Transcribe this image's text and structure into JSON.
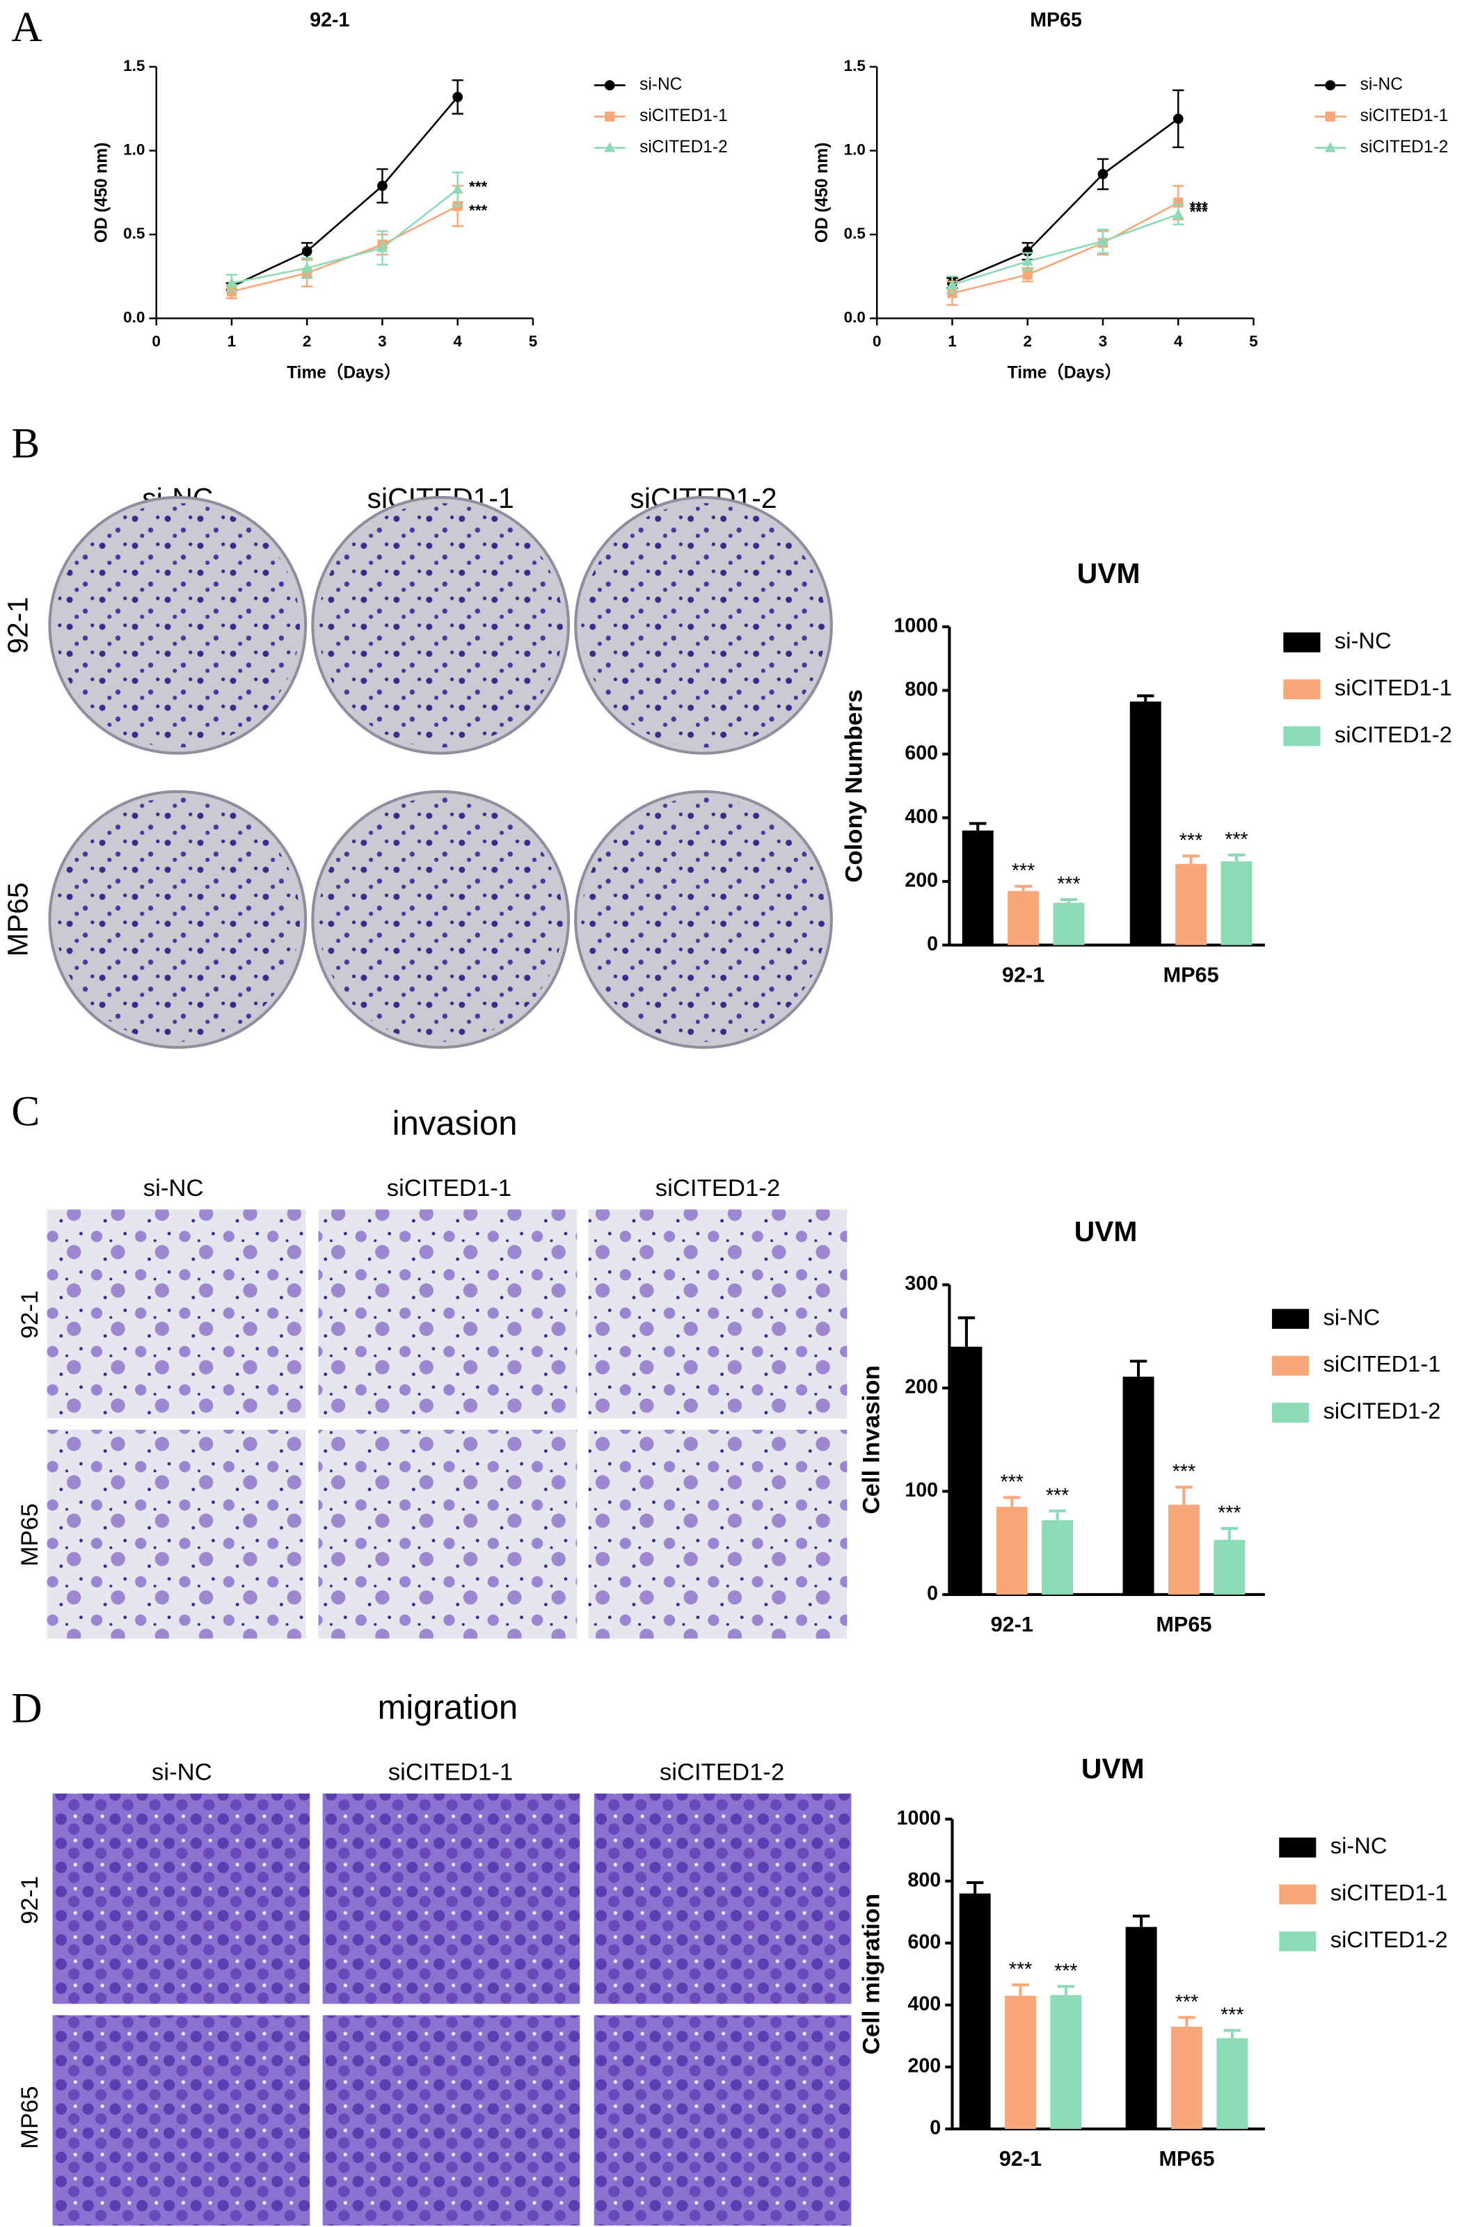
{
  "panel_labels": [
    "A",
    "B",
    "C",
    "D"
  ],
  "image_panels": [
    {
      "columns": [
        "si-NC",
        "siCITED1-1",
        "siCITED1-2"
      ],
      "rows": [
        "92-1",
        "MP65"
      ]
    },
    {
      "title": "invasion",
      "columns": [
        "si-NC",
        "siCITED1-1",
        "siCITED1-2"
      ],
      "rows": [
        "92-1",
        "MP65"
      ]
    },
    {
      "title": "migration",
      "columns": [
        "si-NC",
        "siCITED1-1",
        "siCITED1-2"
      ],
      "rows": [
        "92-1",
        "MP65"
      ]
    }
  ],
  "chart_data": [
    {
      "type": "line",
      "title": "92-1",
      "x_label": "Time（Days）",
      "y_label": "OD (450 nm)",
      "x": [
        1,
        2,
        3,
        4
      ],
      "xlim": [
        0,
        5
      ],
      "xticks": [
        0,
        1,
        2,
        3,
        4,
        5
      ],
      "ylim": [
        0,
        1.5
      ],
      "yticks": [
        {
          "value": 0,
          "label": "0.0"
        },
        0.5,
        {
          "value": 1,
          "label": "1.0"
        },
        1.5
      ],
      "legend": "right",
      "series": [
        {
          "name": "si-NC",
          "color": "#000000",
          "marker": "circle",
          "values": [
            0.19,
            0.4,
            0.79,
            1.32
          ],
          "errors": [
            0.02,
            0.05,
            0.1,
            0.1
          ],
          "annotations": [
            null,
            null,
            null,
            null
          ]
        },
        {
          "name": "siCITED1-1",
          "color": "#f7a779",
          "marker": "square",
          "values": [
            0.16,
            0.27,
            0.44,
            0.67
          ],
          "errors": [
            0.04,
            0.08,
            0.06,
            0.12
          ],
          "annotations": [
            null,
            null,
            null,
            "***"
          ]
        },
        {
          "name": "siCITED1-2",
          "color": "#8ddbb6",
          "marker": "triangle",
          "values": [
            0.21,
            0.3,
            0.42,
            0.77
          ],
          "errors": [
            0.05,
            0.06,
            0.1,
            0.1
          ],
          "annotations": [
            null,
            null,
            null,
            "***"
          ]
        }
      ]
    },
    {
      "type": "line",
      "title": "MP65",
      "x_label": "Time（Days）",
      "y_label": "OD (450 nm)",
      "x": [
        1,
        2,
        3,
        4
      ],
      "xlim": [
        0,
        5
      ],
      "xticks": [
        0,
        1,
        2,
        3,
        4,
        5
      ],
      "ylim": [
        0,
        1.5
      ],
      "yticks": [
        {
          "value": 0,
          "label": "0.0"
        },
        0.5,
        {
          "value": 1,
          "label": "1.0"
        },
        1.5
      ],
      "legend": "right",
      "series": [
        {
          "name": "si-NC",
          "color": "#000000",
          "marker": "circle",
          "values": [
            0.21,
            0.4,
            0.86,
            1.19
          ],
          "errors": [
            0.03,
            0.05,
            0.09,
            0.17
          ],
          "annotations": [
            null,
            null,
            null,
            null
          ]
        },
        {
          "name": "siCITED1-1",
          "color": "#f7a779",
          "marker": "square",
          "values": [
            0.15,
            0.26,
            0.45,
            0.69
          ],
          "errors": [
            0.07,
            0.04,
            0.07,
            0.1
          ],
          "annotations": [
            null,
            null,
            null,
            "***"
          ]
        },
        {
          "name": "siCITED1-2",
          "color": "#8ddbb6",
          "marker": "triangle",
          "values": [
            0.2,
            0.34,
            0.46,
            0.62
          ],
          "errors": [
            0.05,
            0.05,
            0.07,
            0.06
          ],
          "annotations": [
            null,
            null,
            null,
            "***"
          ]
        }
      ]
    },
    {
      "type": "bar",
      "title": "UVM",
      "y_label": "Colony Numbers",
      "categories": [
        "92-1",
        "MP65"
      ],
      "ylim": [
        0,
        1000
      ],
      "yticks": [
        0,
        200,
        400,
        600,
        800,
        1000
      ],
      "legend": "right",
      "series": [
        {
          "name": "si-NC",
          "color": "#000000",
          "values": [
            360,
            765
          ],
          "errors": [
            22,
            18
          ],
          "annotations": [
            null,
            null
          ]
        },
        {
          "name": "siCITED1-1",
          "color": "#f7a779",
          "values": [
            170,
            255
          ],
          "errors": [
            15,
            25
          ],
          "annotations": [
            "***",
            "***"
          ]
        },
        {
          "name": "siCITED1-2",
          "color": "#8ddbb6",
          "values": [
            133,
            263
          ],
          "errors": [
            10,
            20
          ],
          "annotations": [
            "***",
            "***"
          ]
        }
      ]
    },
    {
      "type": "bar",
      "title": "UVM",
      "y_label": "Cell Invasion",
      "categories": [
        "92-1",
        "MP65"
      ],
      "ylim": [
        0,
        300
      ],
      "yticks": [
        0,
        100,
        200,
        300
      ],
      "legend": "right",
      "series": [
        {
          "name": "si-NC",
          "color": "#000000",
          "values": [
            240,
            211
          ],
          "errors": [
            28,
            15
          ],
          "annotations": [
            null,
            null
          ]
        },
        {
          "name": "siCITED1-1",
          "color": "#f7a779",
          "values": [
            85,
            87
          ],
          "errors": [
            9,
            17
          ],
          "annotations": [
            "***",
            "***"
          ]
        },
        {
          "name": "siCITED1-2",
          "color": "#8ddbb6",
          "values": [
            72,
            53
          ],
          "errors": [
            9,
            11
          ],
          "annotations": [
            "***",
            "***"
          ]
        }
      ]
    },
    {
      "type": "bar",
      "title": "UVM",
      "y_label": "Cell migration",
      "categories": [
        "92-1",
        "MP65"
      ],
      "ylim": [
        0,
        1000
      ],
      "yticks": [
        0,
        200,
        400,
        600,
        800,
        1000
      ],
      "legend": "right",
      "series": [
        {
          "name": "si-NC",
          "color": "#000000",
          "values": [
            760,
            652
          ],
          "errors": [
            35,
            35
          ],
          "annotations": [
            null,
            null
          ]
        },
        {
          "name": "siCITED1-1",
          "color": "#f7a779",
          "values": [
            430,
            330
          ],
          "errors": [
            35,
            30
          ],
          "annotations": [
            "***",
            "***"
          ]
        },
        {
          "name": "siCITED1-2",
          "color": "#8ddbb6",
          "values": [
            432,
            293
          ],
          "errors": [
            28,
            25
          ],
          "annotations": [
            "***",
            "***"
          ]
        }
      ]
    }
  ]
}
